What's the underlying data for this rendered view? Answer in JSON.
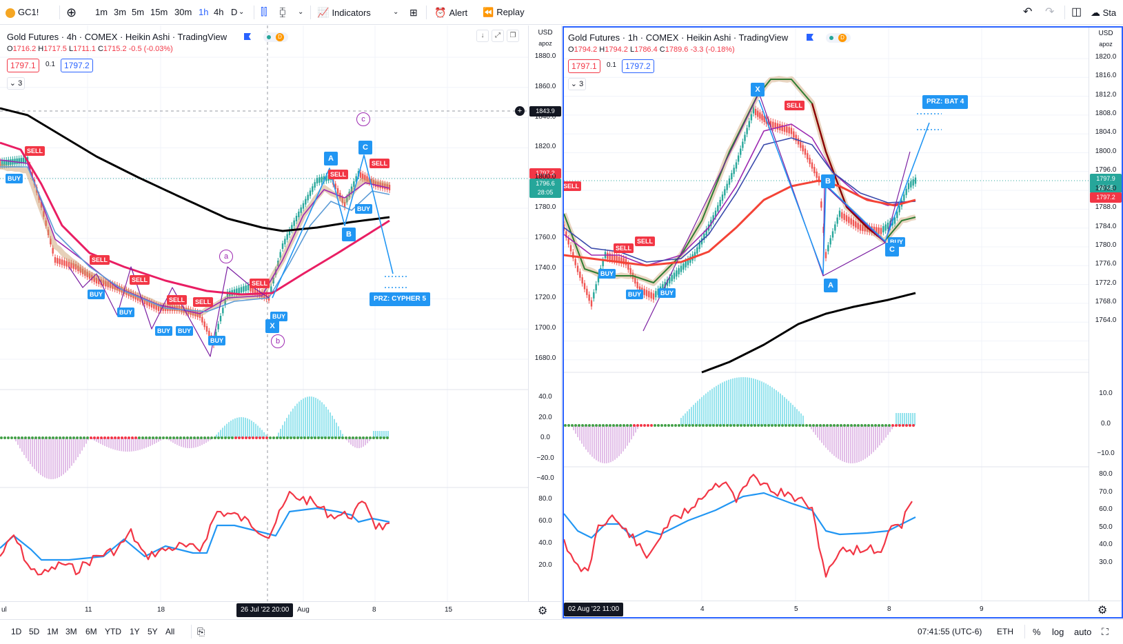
{
  "topbar": {
    "symbol": "GC1!",
    "intervals": [
      "1m",
      "3m",
      "5m",
      "15m",
      "30m",
      "1h",
      "4h",
      "D"
    ],
    "active_interval": "1h",
    "indicators_label": "Indicators",
    "alert_label": "Alert",
    "replay_label": "Replay",
    "start_label": "Sta"
  },
  "left": {
    "title": "Gold Futures · 4h · COMEX · Heikin Ashi · TradingView",
    "ohlc": {
      "o": "1716.2",
      "h": "1717.5",
      "l": "1711.1",
      "c": "1715.2",
      "chg": "-0.5 (-0.03%)"
    },
    "bid": "1797.1",
    "spread": "0.1",
    "ask": "1797.2",
    "collapse": "3",
    "currency": "USD",
    "scale_mode": "apoz",
    "price_ticks": [
      "1880.0",
      "1860.0",
      "1840.0",
      "1820.0",
      "1800.0",
      "1780.0",
      "1760.0",
      "1740.0",
      "1720.0",
      "1700.0",
      "1680.0"
    ],
    "crosshair_price": "1843.9",
    "tag_red": "1797.2",
    "tag_green": "1796.6",
    "tag_timer": "28:05",
    "osc1_ticks": [
      "40.0",
      "20.0",
      "0.0",
      "−20.0",
      "−40.0"
    ],
    "osc2_ticks": [
      "80.0",
      "60.0",
      "40.0",
      "20.0"
    ],
    "time_ticks": [
      "ul",
      "11",
      "18",
      "Aug",
      "8",
      "15"
    ],
    "crosshair_time": "26 Jul '22   20:00",
    "prz_label": "PRZ: CYPHER 5",
    "points": [
      "X",
      "A",
      "B",
      "C"
    ],
    "waves": [
      "a",
      "b",
      "c"
    ],
    "signal_sell": "SELL",
    "signal_buy": "BUY"
  },
  "right": {
    "title": "Gold Futures · 1h · COMEX · Heikin Ashi · TradingView",
    "ohlc": {
      "o": "1794.2",
      "h": "1794.2",
      "l": "1786.4",
      "c": "1789.6",
      "chg": "-3.3 (-0.18%)"
    },
    "bid": "1797.1",
    "spread": "0.1",
    "ask": "1797.2",
    "collapse": "3",
    "currency": "USD",
    "scale_mode": "apoz",
    "price_ticks": [
      "1820.0",
      "1816.0",
      "1812.0",
      "1808.0",
      "1804.0",
      "1800.0",
      "1796.0",
      "1792.0",
      "1788.0",
      "1784.0",
      "1780.0",
      "1776.0",
      "1772.0",
      "1768.0",
      "1764.0"
    ],
    "tag_green": "1797.9",
    "tag_timer": "28:05",
    "tag_red": "1797.2",
    "osc1_ticks": [
      "10.0",
      "0.0",
      "−10.0"
    ],
    "osc2_ticks": [
      "80.0",
      "70.0",
      "60.0",
      "50.0",
      "40.0",
      "30.0"
    ],
    "time_ticks": [
      "4",
      "5",
      "8",
      "9"
    ],
    "crosshair_time": "02 Aug '22   11:00",
    "prz_label": "PRZ: BAT 4",
    "points": [
      "X",
      "A",
      "B",
      "C"
    ],
    "signal_sell": "SELL",
    "signal_buy": "BUY"
  },
  "bottombar": {
    "ranges": [
      "1D",
      "5D",
      "1M",
      "3M",
      "6M",
      "YTD",
      "1Y",
      "5Y",
      "All"
    ],
    "clock": "07:41:55 (UTC-6)",
    "session": "ETH",
    "percent": "%",
    "log": "log",
    "auto": "auto"
  },
  "colors": {
    "sell": "#f23645",
    "buy": "#2196f3",
    "ema_red": "#e91e63",
    "sma_black": "#000000",
    "harmonic": "#9c27b0",
    "accent": "#2962ff"
  }
}
